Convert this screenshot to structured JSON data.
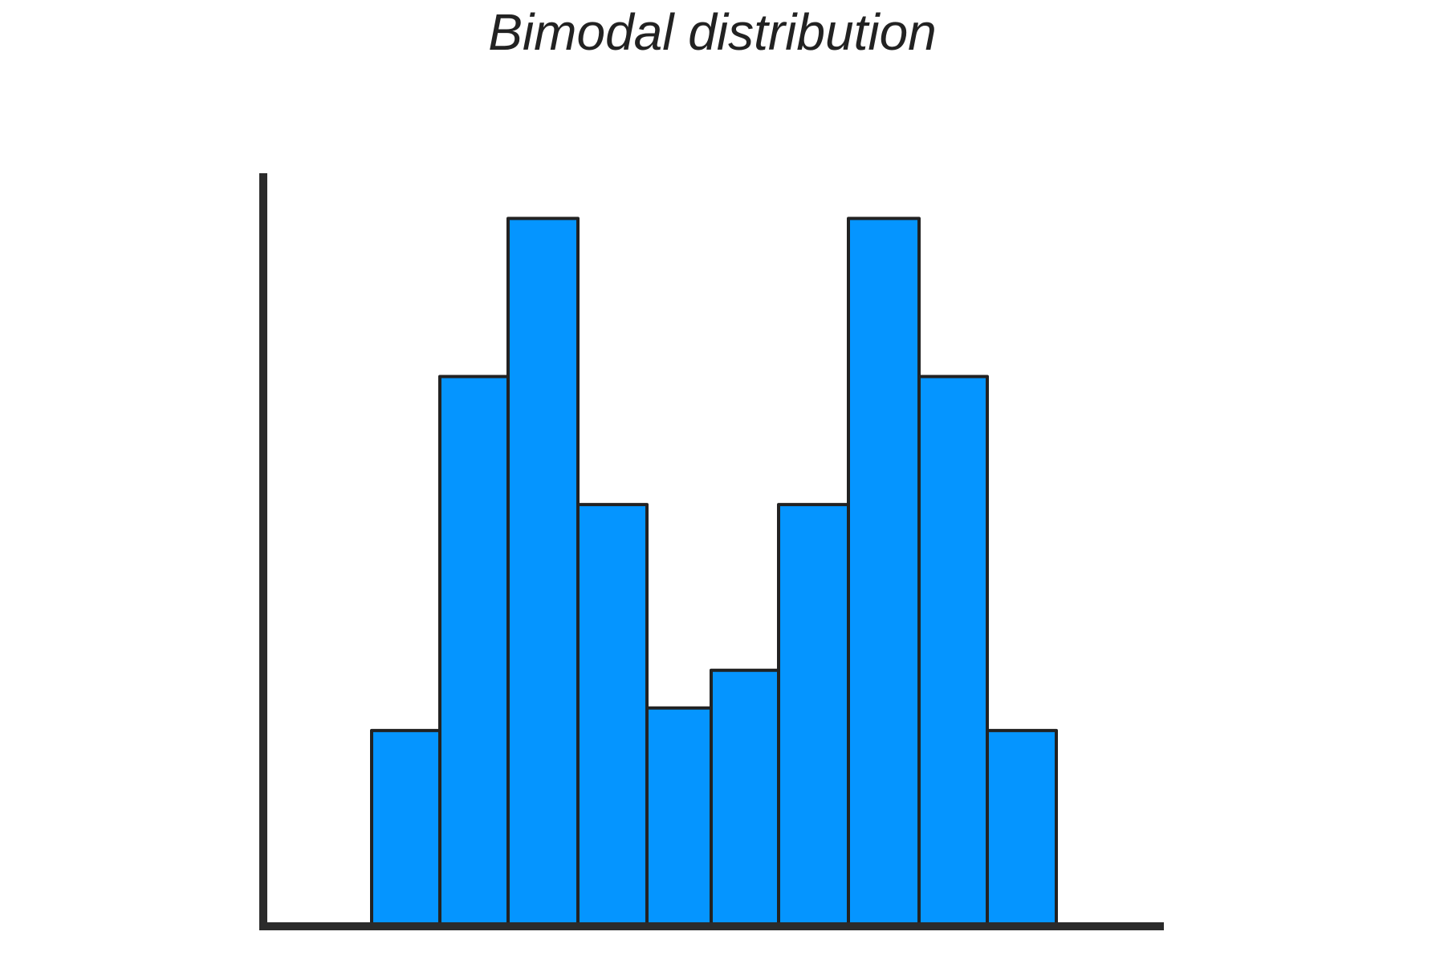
{
  "chart_data": {
    "type": "bar",
    "title": "Bimodal distribution",
    "xlabel": "",
    "ylabel": "",
    "ylim": [
      0,
      100
    ],
    "grid": false,
    "bar_color": "#0595ff",
    "edge_color": "#222222",
    "axis_color": "#2b2b2b",
    "bins": [
      {
        "value": 26
      },
      {
        "value": 73
      },
      {
        "value": 94
      },
      {
        "value": 56
      },
      {
        "value": 29
      },
      {
        "value": 34
      },
      {
        "value": 56
      },
      {
        "value": 94
      },
      {
        "value": 73
      },
      {
        "value": 26
      }
    ]
  }
}
